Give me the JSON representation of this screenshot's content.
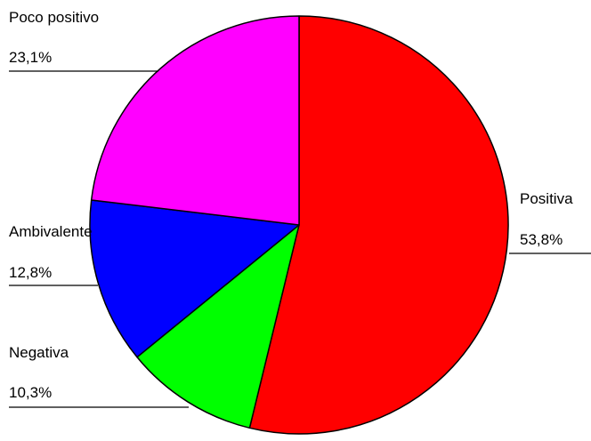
{
  "chart_data": {
    "type": "pie",
    "title": "",
    "legend": "none",
    "start_angle_deg": 0,
    "direction": "clockwise",
    "slices": [
      {
        "name": "Positiva",
        "value": 53.8,
        "label": "53,8%",
        "color": "#ff0000"
      },
      {
        "name": "Negativa",
        "value": 10.3,
        "label": "10,3%",
        "color": "#00ff00"
      },
      {
        "name": "Ambivalente",
        "value": 12.8,
        "label": "12,8%",
        "color": "#0000ff"
      },
      {
        "name": "Poco positivo",
        "value": 23.1,
        "label": "23,1%",
        "color": "#ff00ff"
      }
    ],
    "outline_color": "#000000"
  }
}
